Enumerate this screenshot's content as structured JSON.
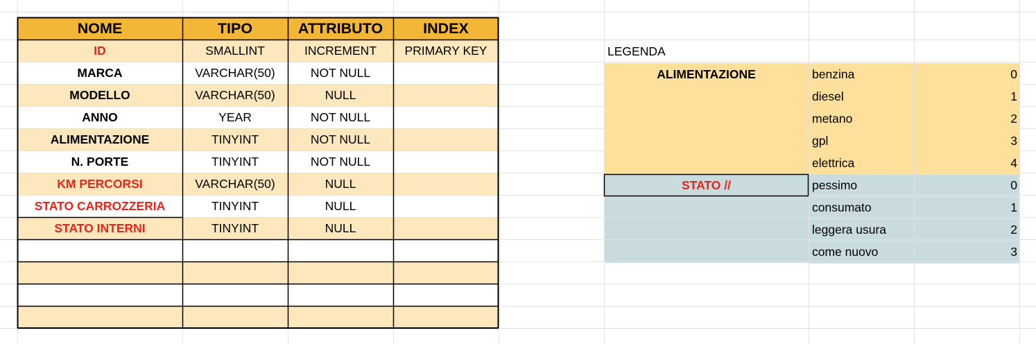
{
  "colors": {
    "header_bg": "#f4b637",
    "band_bg": "#fde7bd",
    "legend_fuel_bg": "#ffe09a",
    "legend_state_bg": "#c9dbdf",
    "gridline": "#e2e2e2",
    "border": "#000000",
    "red_text": "#e8241b"
  },
  "schema_table": {
    "headers": [
      "NOME",
      "TIPO",
      "ATTRIBUTO",
      "INDEX"
    ],
    "rows": [
      {
        "name": "ID",
        "tipo": "SMALLINT",
        "attributo": "INCREMENT",
        "index": "PRIMARY KEY",
        "red": true
      },
      {
        "name": "MARCA",
        "tipo": "VARCHAR(50)",
        "attributo": "NOT NULL",
        "index": "",
        "red": false
      },
      {
        "name": "MODELLO",
        "tipo": "VARCHAR(50)",
        "attributo": "NULL",
        "index": "",
        "red": false
      },
      {
        "name": "ANNO",
        "tipo": "YEAR",
        "attributo": "NOT NULL",
        "index": "",
        "red": false
      },
      {
        "name": "ALIMENTAZIONE",
        "tipo": "TINYINT",
        "attributo": "NOT NULL",
        "index": "",
        "red": false
      },
      {
        "name": "N. PORTE",
        "tipo": "TINYINT",
        "attributo": "NOT NULL",
        "index": "",
        "red": false
      },
      {
        "name": "KM PERCORSI",
        "tipo": "VARCHAR(50)",
        "attributo": "NULL",
        "index": "",
        "red": true
      },
      {
        "name": "STATO CARROZZERIA",
        "tipo": "TINYINT",
        "attributo": "NULL",
        "index": "",
        "red": true
      },
      {
        "name": "STATO INTERNI",
        "tipo": "TINYINT",
        "attributo": "NULL",
        "index": "",
        "red": true
      },
      {
        "name": "",
        "tipo": "",
        "attributo": "",
        "index": "",
        "red": false
      },
      {
        "name": "",
        "tipo": "",
        "attributo": "",
        "index": "",
        "red": false
      },
      {
        "name": "",
        "tipo": "",
        "attributo": "",
        "index": "",
        "red": false
      },
      {
        "name": "",
        "tipo": "",
        "attributo": "",
        "index": "",
        "red": false
      }
    ]
  },
  "legend": {
    "title": "LEGENDA",
    "groups": [
      {
        "label": "ALIMENTAZIONE",
        "items": [
          {
            "label": "benzina",
            "value": "0"
          },
          {
            "label": "diesel",
            "value": "1"
          },
          {
            "label": "metano",
            "value": "2"
          },
          {
            "label": "gpl",
            "value": "3"
          },
          {
            "label": "elettrica",
            "value": "4"
          }
        ]
      },
      {
        "label": "STATO //",
        "items": [
          {
            "label": "pessimo",
            "value": "0"
          },
          {
            "label": "consumato",
            "value": "1"
          },
          {
            "label": "leggera usura",
            "value": "2"
          },
          {
            "label": "come nuovo",
            "value": "3"
          }
        ]
      }
    ]
  }
}
